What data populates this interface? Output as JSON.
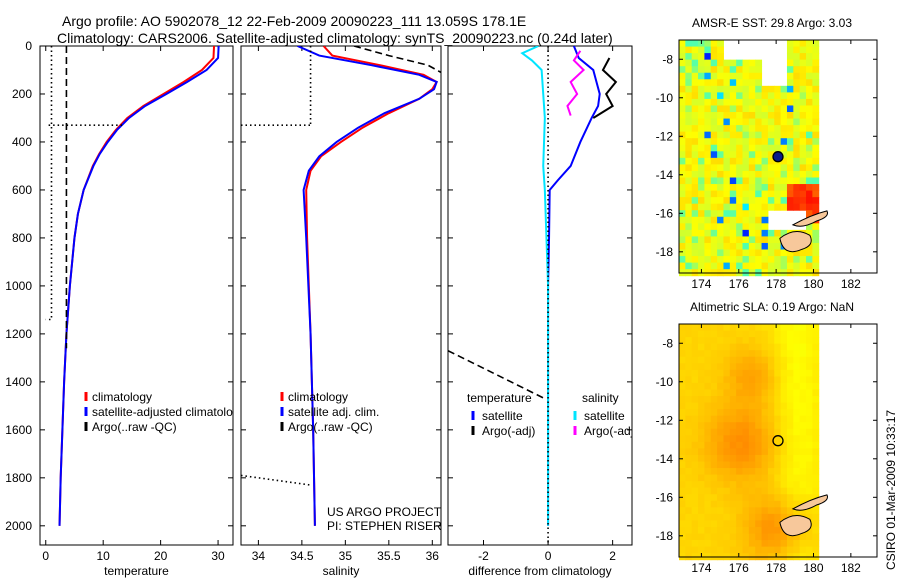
{
  "title_lines": [
    "Argo profile: AO 5902078_12 22-Feb-2009 20090223_111 13.059S 178.1E",
    "Climatology: CARS2006. Satellite-adjusted climatology: synTS_20090223.nc (0.24d later)"
  ],
  "side_label": "CSIRO 01-Mar-2009 10:33:17",
  "colors": {
    "climatology": "#ff0000",
    "satellite": "#0000ff",
    "argo": "#000000",
    "sal_satellite": "#00e5ff",
    "sal_argo": "#ff00ff"
  },
  "chart_data": [
    {
      "type": "line",
      "id": "temperature",
      "xlabel": "temperature",
      "xlim": [
        -1,
        32.6
      ],
      "ylim": [
        2080,
        0
      ],
      "xticks": [
        0,
        10,
        20,
        30
      ],
      "yticks": [
        0,
        200,
        400,
        600,
        800,
        1000,
        1200,
        1400,
        1600,
        1800,
        2000
      ],
      "legend": [
        "climatology",
        "satellite-adjusted climatology",
        "Argo(..raw -QC)"
      ],
      "series": [
        {
          "name": "climatology",
          "style": "solid",
          "color": "climatology",
          "depth": [
            0,
            50,
            100,
            150,
            200,
            250,
            300,
            350,
            400,
            450,
            500,
            600,
            700,
            800,
            1000,
            1200,
            1400,
            1600,
            1800,
            2000
          ],
          "value": [
            29.3,
            29.2,
            27.2,
            24,
            20.5,
            17,
            14.2,
            12.2,
            10.6,
            9.3,
            8.2,
            6.6,
            5.6,
            5,
            4.2,
            3.6,
            3.2,
            2.9,
            2.6,
            2.4
          ]
        },
        {
          "name": "satellite-adjusted climatology",
          "style": "solid",
          "color": "satellite",
          "depth": [
            0,
            50,
            100,
            150,
            200,
            250,
            300,
            350,
            400,
            450,
            500,
            600,
            700,
            800,
            1000,
            1200,
            1400,
            1600,
            1800,
            2000
          ],
          "value": [
            30.1,
            30.0,
            28,
            24.6,
            21,
            17.3,
            14.5,
            12.4,
            10.8,
            9.4,
            8.3,
            6.6,
            5.6,
            5,
            4.2,
            3.6,
            3.2,
            2.9,
            2.6,
            2.4
          ]
        },
        {
          "name": "Argo(..raw -QC)",
          "style": "dashed",
          "color": "argo",
          "depth": [
            0,
            1260
          ],
          "value": [
            3.6,
            3.6
          ]
        },
        {
          "name": "Argo dotted",
          "style": "dotted",
          "color": "argo",
          "depth": [
            0,
            1140,
            1140
          ],
          "value": [
            1,
            1,
            0
          ]
        },
        {
          "name": "Argo dotted flag",
          "style": "dotted",
          "color": "argo",
          "depth": [
            330,
            330
          ],
          "value": [
            0.5,
            13.5
          ]
        }
      ]
    },
    {
      "type": "line",
      "id": "salinity",
      "xlabel": "salinity",
      "xlim": [
        33.8,
        36.1
      ],
      "ylim": [
        2080,
        0
      ],
      "xticks": [
        34,
        34.5,
        35,
        35.5,
        36
      ],
      "yticks": [],
      "legend": [
        "climatology",
        "satellite adj. clim.",
        "Argo(..raw -QC)"
      ],
      "annotations": [
        "US ARGO PROJECT",
        "PI: STEPHEN RISER"
      ],
      "series": [
        {
          "name": "climatology",
          "style": "solid",
          "color": "climatology",
          "depth": [
            0,
            40,
            80,
            120,
            150,
            180,
            220,
            280,
            340,
            400,
            460,
            520,
            600,
            800,
            1200,
            1600,
            2000
          ],
          "value": [
            34.75,
            34.85,
            35.4,
            35.9,
            36.05,
            36.0,
            35.85,
            35.5,
            35.2,
            34.95,
            34.72,
            34.6,
            34.55,
            34.56,
            34.6,
            34.63,
            34.65
          ]
        },
        {
          "name": "satellite adj. clim.",
          "style": "solid",
          "color": "satellite",
          "depth": [
            0,
            40,
            80,
            120,
            150,
            180,
            220,
            280,
            340,
            400,
            460,
            520,
            600,
            800,
            1200,
            1600,
            2000
          ],
          "value": [
            34.45,
            34.7,
            35.3,
            35.85,
            36.05,
            36.02,
            35.85,
            35.45,
            35.15,
            34.9,
            34.7,
            34.58,
            34.52,
            34.55,
            34.6,
            34.63,
            34.65
          ]
        },
        {
          "name": "Argo(..raw -QC)",
          "style": "dashed",
          "color": "argo",
          "depth": [
            0,
            40,
            80,
            110
          ],
          "value": [
            35.1,
            35.5,
            35.95,
            36.1
          ]
        },
        {
          "name": "Argo dotted",
          "style": "dotted",
          "color": "argo",
          "depth": [
            0,
            330
          ],
          "value": [
            34.6,
            34.6
          ]
        },
        {
          "name": "Argo dotted flag",
          "style": "dotted",
          "color": "argo",
          "depth": [
            330,
            330
          ],
          "value": [
            33.8,
            34.6
          ]
        },
        {
          "name": "Argo dotted deep",
          "style": "dotted",
          "color": "argo",
          "depth": [
            1790,
            1830
          ],
          "value": [
            33.8,
            34.6
          ]
        }
      ]
    },
    {
      "type": "line",
      "id": "difference",
      "xlabel": "difference from climatology",
      "xlim": [
        -3.1,
        2.6
      ],
      "ylim": [
        2080,
        0
      ],
      "xticks": [
        -2,
        0,
        2
      ],
      "yticks": [],
      "legend_headers": [
        "temperature",
        "salinity"
      ],
      "legend": [
        "satellite",
        "Argo(-adj)",
        "satellite",
        "Argo(-adj)"
      ],
      "series": [
        {
          "name": "temperature satellite",
          "style": "solid",
          "color": "satellite",
          "depth": [
            0,
            50,
            100,
            150,
            200,
            250,
            300,
            400,
            500,
            560,
            600,
            800,
            1000,
            2000
          ],
          "value": [
            0.8,
            0.95,
            1.4,
            1.5,
            1.6,
            1.55,
            1.35,
            1.0,
            0.7,
            0.3,
            0.05,
            0.03,
            0,
            0
          ]
        },
        {
          "name": "salinity satellite",
          "style": "solid",
          "color": "sal_satellite",
          "depth": [
            0,
            30,
            60,
            100,
            200,
            300,
            500,
            600,
            800,
            1000,
            2000
          ],
          "value": [
            -0.3,
            -0.8,
            -0.5,
            -0.2,
            -0.15,
            -0.1,
            -0.15,
            -0.1,
            -0.05,
            0,
            0
          ]
        },
        {
          "name": "temperature Argo(-adj)",
          "style": "solid",
          "color": "argo",
          "depth": [
            50,
            100,
            150,
            200,
            250,
            300
          ],
          "value": [
            1.9,
            1.7,
            2.1,
            1.8,
            2.0,
            1.4
          ]
        },
        {
          "name": "salinity Argo(-adj)",
          "style": "solid",
          "color": "sal_argo",
          "depth": [
            20,
            60,
            100,
            150,
            200,
            250,
            290
          ],
          "value": [
            1.0,
            0.8,
            1.1,
            0.7,
            0.9,
            0.6,
            0.7
          ]
        },
        {
          "name": "Argo dashed",
          "style": "dashed",
          "color": "argo",
          "depth": [
            1270,
            1470
          ],
          "value": [
            -3.1,
            -0.1
          ]
        },
        {
          "name": "zero line",
          "style": "dotted",
          "color": "argo",
          "depth": [
            0,
            2080
          ],
          "value": [
            0,
            0
          ]
        }
      ]
    },
    {
      "type": "heatmap",
      "id": "sst-map",
      "title": "AMSR-E SST: 29.8 Argo: 3.03",
      "xlim": [
        172.8,
        183.4
      ],
      "ylim": [
        -19.1,
        -7.0
      ],
      "xticks": [
        174,
        176,
        178,
        180,
        182
      ],
      "yticks": [
        -8,
        -10,
        -12,
        -14,
        -16,
        -18
      ],
      "argo_position": [
        178.1,
        -13.06
      ]
    },
    {
      "type": "heatmap",
      "id": "sla-map",
      "title": "Altimetric SLA: 0.19 Argo: NaN",
      "xlim": [
        172.8,
        183.4
      ],
      "ylim": [
        -19.1,
        -7.0
      ],
      "xticks": [
        174,
        176,
        178,
        180,
        182
      ],
      "yticks": [
        -8,
        -10,
        -12,
        -14,
        -16,
        -18
      ],
      "argo_position": [
        178.1,
        -13.06
      ]
    }
  ]
}
